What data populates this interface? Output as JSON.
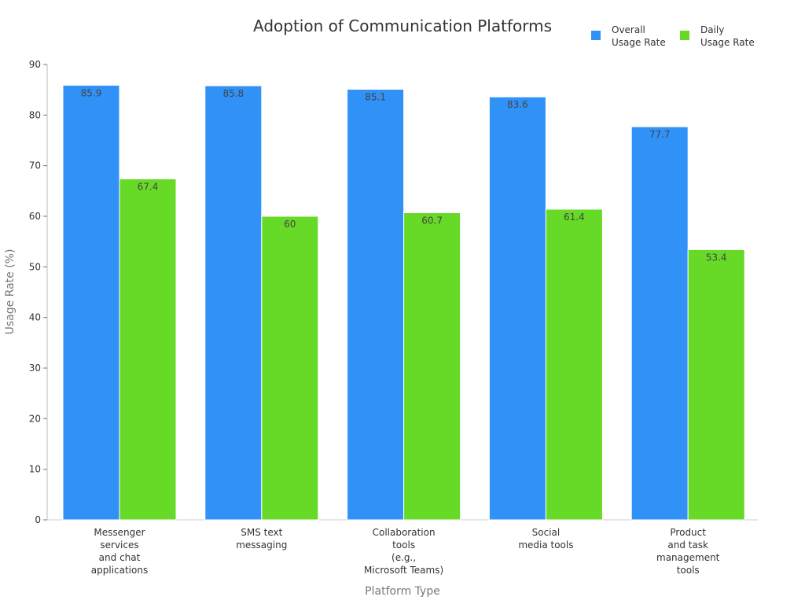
{
  "chart_data": {
    "type": "bar",
    "title": "Adoption of Communication Platforms",
    "xlabel": "Platform Type",
    "ylabel": "Usage Rate (%)",
    "ylim": [
      0,
      90
    ],
    "yticks": [
      0,
      10,
      20,
      30,
      40,
      50,
      60,
      70,
      80,
      90
    ],
    "grid": false,
    "legend_position": "top-right",
    "categories": [
      [
        "Messenger",
        "services",
        "and chat",
        "applications"
      ],
      [
        "SMS text",
        "messaging"
      ],
      [
        "Collaboration",
        "tools",
        "(e.g.,",
        "Microsoft Teams)"
      ],
      [
        "Social",
        "media tools"
      ],
      [
        "Product",
        "and task",
        "management",
        "tools"
      ]
    ],
    "series": [
      {
        "name": [
          "Overall",
          "Usage Rate"
        ],
        "color": "#3092f7",
        "values": [
          85.9,
          85.8,
          85.1,
          83.6,
          77.7
        ],
        "labels": [
          "85.9",
          "85.8",
          "85.1",
          "83.6",
          "77.7"
        ]
      },
      {
        "name": [
          "Daily",
          "Usage Rate"
        ],
        "color": "#66da26",
        "values": [
          67.4,
          60,
          60.7,
          61.4,
          53.4
        ],
        "labels": [
          "67.4",
          "60",
          "60.7",
          "61.4",
          "53.4"
        ]
      }
    ]
  }
}
